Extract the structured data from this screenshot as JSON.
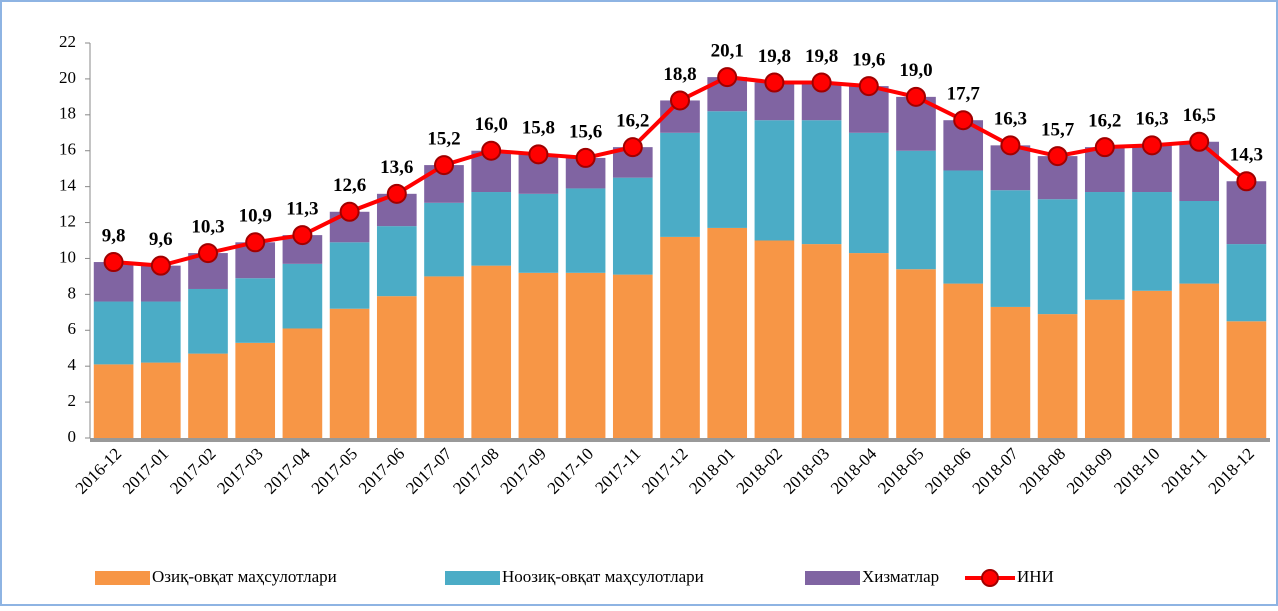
{
  "chart_data": {
    "type": "bar",
    "stacked": true,
    "categories": [
      "2016-12",
      "2017-01",
      "2017-02",
      "2017-03",
      "2017-04",
      "2017-05",
      "2017-06",
      "2017-07",
      "2017-08",
      "2017-09",
      "2017-10",
      "2017-11",
      "2017-12",
      "2018-01",
      "2018-02",
      "2018-03",
      "2018-04",
      "2018-05",
      "2018-06",
      "2018-07",
      "2018-08",
      "2018-09",
      "2018-10",
      "2018-11",
      "2018-12"
    ],
    "series": [
      {
        "name": "Озиқ-овқат маҳсулотлари",
        "color": "#f79646",
        "values": [
          4.1,
          4.2,
          4.7,
          5.3,
          6.1,
          7.2,
          7.9,
          9.0,
          9.6,
          9.2,
          9.2,
          9.1,
          11.2,
          11.7,
          11.0,
          10.8,
          10.3,
          9.4,
          8.6,
          7.3,
          6.9,
          7.7,
          8.2,
          8.6,
          6.5
        ]
      },
      {
        "name": "Ноозиқ-овқат маҳсулотлари",
        "color": "#4bacc6",
        "values": [
          3.5,
          3.4,
          3.6,
          3.6,
          3.6,
          3.7,
          3.9,
          4.1,
          4.1,
          4.4,
          4.7,
          5.4,
          5.8,
          6.5,
          6.7,
          6.9,
          6.7,
          6.6,
          6.3,
          6.5,
          6.4,
          6.0,
          5.5,
          4.6,
          4.3
        ]
      },
      {
        "name": "Хизматлар",
        "color": "#8064a2",
        "values": [
          2.2,
          2.0,
          2.0,
          2.0,
          1.6,
          1.7,
          1.8,
          2.1,
          2.3,
          2.2,
          1.7,
          1.7,
          1.8,
          1.9,
          2.1,
          2.1,
          2.6,
          3.0,
          2.8,
          2.5,
          2.4,
          2.5,
          2.6,
          3.3,
          3.5
        ]
      },
      {
        "name": "ИНИ",
        "type": "line",
        "color": "#ff0000",
        "values": [
          9.8,
          9.6,
          10.3,
          10.9,
          11.3,
          12.6,
          13.6,
          15.2,
          16.0,
          15.8,
          15.6,
          16.2,
          18.8,
          20.1,
          19.8,
          19.8,
          19.6,
          19.0,
          17.7,
          16.3,
          15.7,
          16.2,
          16.3,
          16.5,
          14.3
        ],
        "value_labels": [
          "9,8",
          "9,6",
          "10,3",
          "10,9",
          "11,3",
          "12,6",
          "13,6",
          "15,2",
          "16,0",
          "15,8",
          "15,6",
          "16,2",
          "18,8",
          "20,1",
          "19,8",
          "19,8",
          "19,6",
          "19,0",
          "17,7",
          "16,3",
          "15,7",
          "16,2",
          "16,3",
          "16,5",
          "14,3"
        ]
      }
    ],
    "ylim": [
      0,
      22
    ],
    "yticks": [
      0,
      2,
      4,
      6,
      8,
      10,
      12,
      14,
      16,
      18,
      20,
      22
    ],
    "legend": "bottom"
  }
}
